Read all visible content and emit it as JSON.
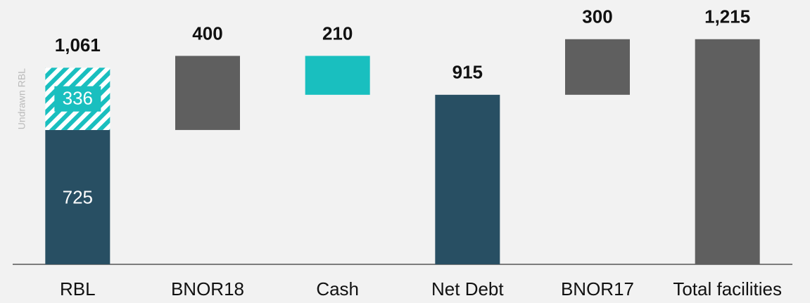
{
  "chart_data": {
    "type": "waterfall",
    "categories": [
      "RBL",
      "BNOR18",
      "Cash",
      "Net Debt",
      "BNOR17",
      "Total facilities"
    ],
    "values": [
      725,
      400,
      210,
      915,
      300,
      1215
    ],
    "value_labels": [
      "725",
      "400",
      "210",
      "915",
      "300",
      "1,215"
    ],
    "measure": [
      "base",
      "increase",
      "decrease",
      "total",
      "increase",
      "total"
    ],
    "colors": [
      "#284f63",
      "#5f5f5f",
      "#19bfbf",
      "#284f63",
      "#5f5f5f",
      "#5f5f5f"
    ],
    "undrawn": {
      "label": "Undrawn RBL",
      "value": 336,
      "color": "#19bfbf"
    },
    "rbl_total": {
      "value": 1061,
      "label": "1,061"
    },
    "ylim": [
      0,
      1400
    ]
  }
}
